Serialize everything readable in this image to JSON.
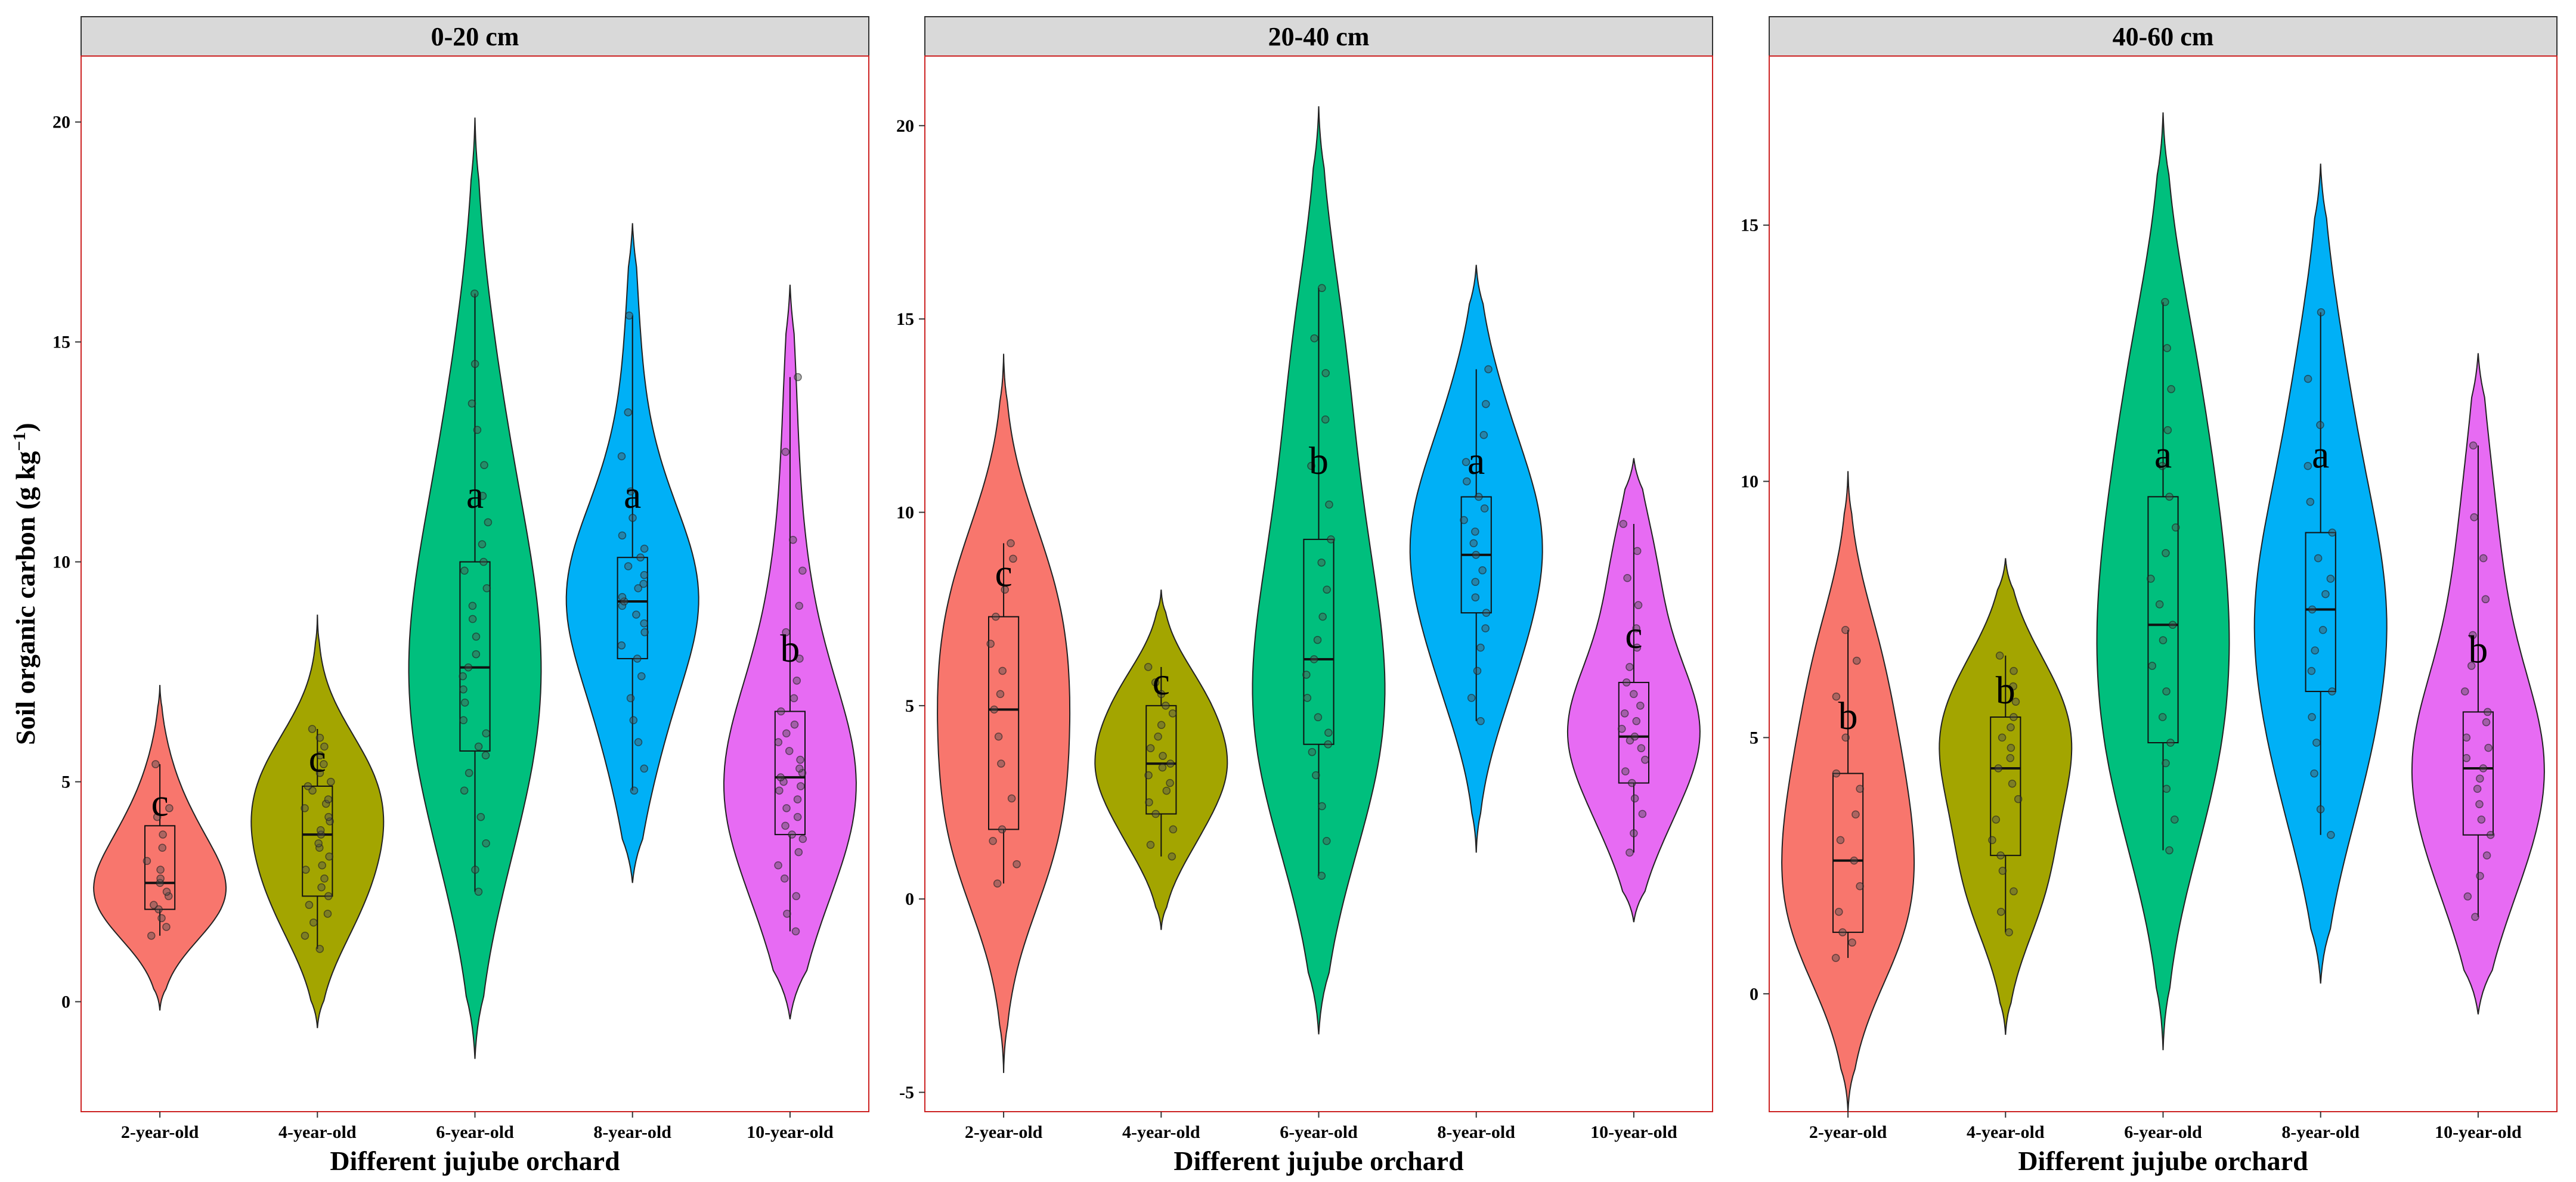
{
  "chart_data": [
    {
      "type": "violin",
      "panel_title": "0-20 cm",
      "ylabel": "Soil organic carbon (g kg-1)",
      "xlabel": "Different jujube orchard",
      "ylim": [
        -2.5,
        21.5
      ],
      "yticks": [
        0,
        5,
        10,
        15,
        20
      ],
      "grid": false,
      "legend": "none",
      "groups": [
        {
          "name": "2-year-old",
          "color": "#F8766D",
          "letter": "c",
          "label_y": 4.5,
          "min": 1.5,
          "q1": 2.1,
          "median": 2.7,
          "q3": 4.0,
          "max": 5.4,
          "violin_min": -0.2,
          "violin_max": 7.2,
          "points": [
            1.5,
            1.7,
            1.9,
            2.1,
            2.2,
            2.4,
            2.5,
            2.7,
            2.8,
            3.0,
            3.2,
            3.5,
            3.8,
            4.2,
            4.4,
            5.4
          ]
        },
        {
          "name": "4-year-old",
          "color": "#A3A500",
          "letter": "c",
          "label_y": 5.5,
          "min": 1.2,
          "q1": 2.4,
          "median": 3.8,
          "q3": 4.9,
          "max": 6.2,
          "violin_min": -0.6,
          "violin_max": 8.8,
          "points": [
            1.2,
            1.5,
            1.8,
            2.0,
            2.2,
            2.4,
            2.6,
            2.8,
            3.0,
            3.1,
            3.3,
            3.5,
            3.6,
            3.8,
            3.9,
            4.1,
            4.2,
            4.4,
            4.5,
            4.6,
            4.8,
            4.9,
            5.0,
            5.2,
            5.4,
            5.6,
            5.8,
            6.0,
            6.2
          ]
        },
        {
          "name": "6-year-old",
          "color": "#00BF7D",
          "letter": "a",
          "label_y": 11.5,
          "min": 2.5,
          "q1": 5.7,
          "median": 7.6,
          "q3": 10.0,
          "max": 16.1,
          "violin_min": -1.3,
          "violin_max": 20.1,
          "points": [
            2.5,
            3.0,
            3.6,
            4.2,
            4.8,
            5.2,
            5.6,
            5.8,
            6.1,
            6.4,
            6.8,
            7.1,
            7.4,
            7.6,
            7.9,
            8.3,
            8.7,
            9.0,
            9.4,
            9.8,
            10.0,
            10.4,
            10.9,
            11.5,
            12.2,
            13.0,
            13.6,
            14.5,
            16.1
          ]
        },
        {
          "name": "8-year-old",
          "color": "#00B0F6",
          "letter": "a",
          "label_y": 11.5,
          "min": 4.8,
          "q1": 7.8,
          "median": 9.1,
          "q3": 10.1,
          "max": 15.6,
          "violin_min": 2.7,
          "violin_max": 17.7,
          "points": [
            4.8,
            5.3,
            5.9,
            6.4,
            6.9,
            7.4,
            7.8,
            8.1,
            8.4,
            8.6,
            8.8,
            9.0,
            9.1,
            9.2,
            9.4,
            9.5,
            9.7,
            9.9,
            10.1,
            10.3,
            10.6,
            11.0,
            11.6,
            12.4,
            13.4,
            15.6
          ]
        },
        {
          "name": "10-year-old",
          "color": "#E76BF3",
          "letter": "b",
          "label_y": 8.0,
          "min": 1.6,
          "q1": 3.8,
          "median": 5.1,
          "q3": 6.6,
          "max": 14.2,
          "violin_min": -0.4,
          "violin_max": 16.3,
          "points": [
            1.6,
            2.0,
            2.4,
            2.8,
            3.1,
            3.4,
            3.7,
            3.8,
            4.0,
            4.2,
            4.4,
            4.6,
            4.8,
            4.9,
            5.0,
            5.1,
            5.2,
            5.3,
            5.5,
            5.7,
            5.9,
            6.1,
            6.3,
            6.6,
            6.9,
            7.3,
            7.8,
            8.4,
            9.0,
            9.8,
            10.5,
            12.5,
            14.2
          ]
        }
      ]
    },
    {
      "type": "violin",
      "panel_title": "20-40 cm",
      "xlabel": "Different jujube orchard",
      "ylim": [
        -5.5,
        21.8
      ],
      "yticks": [
        -5,
        0,
        5,
        10,
        15,
        20
      ],
      "grid": false,
      "legend": "none",
      "groups": [
        {
          "name": "2-year-old",
          "color": "#F8766D",
          "letter": "c",
          "label_y": 8.4,
          "min": 0.4,
          "q1": 1.8,
          "median": 4.9,
          "q3": 7.3,
          "max": 9.2,
          "violin_min": -4.5,
          "violin_max": 14.1,
          "points": [
            0.4,
            0.9,
            1.5,
            1.8,
            2.6,
            3.5,
            4.2,
            4.9,
            5.3,
            5.9,
            6.6,
            7.3,
            8.0,
            8.8,
            9.2
          ]
        },
        {
          "name": "4-year-old",
          "color": "#A3A500",
          "letter": "c",
          "label_y": 5.6,
          "min": 1.1,
          "q1": 2.2,
          "median": 3.5,
          "q3": 5.0,
          "max": 6.0,
          "violin_min": -0.8,
          "violin_max": 8.0,
          "points": [
            1.1,
            1.4,
            1.8,
            2.2,
            2.5,
            2.8,
            3.0,
            3.2,
            3.4,
            3.5,
            3.7,
            3.9,
            4.2,
            4.5,
            4.8,
            5.0,
            5.3,
            5.6,
            6.0
          ]
        },
        {
          "name": "6-year-old",
          "color": "#00BF7D",
          "letter": "b",
          "label_y": 11.3,
          "min": 0.6,
          "q1": 4.0,
          "median": 6.2,
          "q3": 9.3,
          "max": 15.8,
          "violin_min": -3.5,
          "violin_max": 20.5,
          "points": [
            0.6,
            1.5,
            2.4,
            3.2,
            3.8,
            4.0,
            4.3,
            4.7,
            5.2,
            5.8,
            6.2,
            6.7,
            7.3,
            8.0,
            8.7,
            9.3,
            10.2,
            11.2,
            12.4,
            13.6,
            14.5,
            15.8
          ]
        },
        {
          "name": "8-year-old",
          "color": "#00B0F6",
          "letter": "a",
          "label_y": 11.3,
          "min": 4.6,
          "q1": 7.4,
          "median": 8.9,
          "q3": 10.4,
          "max": 13.7,
          "violin_min": 1.2,
          "violin_max": 16.4,
          "points": [
            4.6,
            5.2,
            5.9,
            6.5,
            7.0,
            7.4,
            7.8,
            8.2,
            8.5,
            8.9,
            9.2,
            9.5,
            9.8,
            10.1,
            10.4,
            10.8,
            11.3,
            12.0,
            12.8,
            13.7
          ]
        },
        {
          "name": "10-year-old",
          "color": "#E76BF3",
          "letter": "c",
          "label_y": 6.8,
          "min": 1.2,
          "q1": 3.0,
          "median": 4.2,
          "q3": 5.6,
          "max": 9.7,
          "violin_min": -0.6,
          "violin_max": 11.4,
          "points": [
            1.2,
            1.7,
            2.2,
            2.6,
            3.0,
            3.3,
            3.6,
            3.9,
            4.1,
            4.2,
            4.4,
            4.6,
            4.8,
            5.0,
            5.3,
            5.6,
            6.0,
            6.5,
            7.0,
            7.6,
            8.3,
            9.0,
            9.7
          ]
        }
      ]
    },
    {
      "type": "violin",
      "panel_title": "40-60 cm",
      "xlabel": "Different jujube orchard",
      "ylim": [
        -2.3,
        18.3
      ],
      "yticks": [
        0,
        5,
        10,
        15
      ],
      "grid": false,
      "legend": "none",
      "groups": [
        {
          "name": "2-year-old",
          "color": "#F8766D",
          "letter": "b",
          "label_y": 5.4,
          "min": 0.7,
          "q1": 1.2,
          "median": 2.6,
          "q3": 4.3,
          "max": 7.1,
          "violin_min": -2.3,
          "violin_max": 10.2,
          "points": [
            0.7,
            1.0,
            1.2,
            1.6,
            2.1,
            2.6,
            3.0,
            3.5,
            4.0,
            4.3,
            5.0,
            5.8,
            6.5,
            7.1
          ]
        },
        {
          "name": "4-year-old",
          "color": "#A3A500",
          "letter": "b",
          "label_y": 5.9,
          "min": 1.2,
          "q1": 2.7,
          "median": 4.4,
          "q3": 5.4,
          "max": 6.6,
          "violin_min": -0.8,
          "violin_max": 8.5,
          "points": [
            1.2,
            1.6,
            2.0,
            2.4,
            2.7,
            3.0,
            3.4,
            3.8,
            4.1,
            4.4,
            4.6,
            4.8,
            5.0,
            5.2,
            5.4,
            5.7,
            6.0,
            6.3,
            6.6
          ]
        },
        {
          "name": "6-year-old",
          "color": "#00BF7D",
          "letter": "a",
          "label_y": 10.5,
          "min": 2.8,
          "q1": 4.9,
          "median": 7.2,
          "q3": 9.7,
          "max": 13.5,
          "violin_min": -1.1,
          "violin_max": 17.2,
          "points": [
            2.8,
            3.4,
            4.0,
            4.5,
            4.9,
            5.4,
            5.9,
            6.4,
            6.9,
            7.2,
            7.6,
            8.1,
            8.6,
            9.1,
            9.7,
            10.3,
            11.0,
            11.8,
            12.6,
            13.5
          ]
        },
        {
          "name": "8-year-old",
          "color": "#00B0F6",
          "letter": "a",
          "label_y": 10.5,
          "min": 3.1,
          "q1": 5.9,
          "median": 7.5,
          "q3": 9.0,
          "max": 13.3,
          "violin_min": 0.2,
          "violin_max": 16.2,
          "points": [
            3.1,
            3.6,
            4.3,
            4.9,
            5.4,
            5.9,
            6.3,
            6.7,
            7.1,
            7.5,
            7.8,
            8.1,
            8.5,
            9.0,
            9.6,
            10.3,
            11.1,
            12.0,
            13.3
          ]
        },
        {
          "name": "10-year-old",
          "color": "#E76BF3",
          "letter": "b",
          "label_y": 6.7,
          "min": 1.5,
          "q1": 3.1,
          "median": 4.4,
          "q3": 5.5,
          "max": 10.7,
          "violin_min": -0.4,
          "violin_max": 12.5,
          "points": [
            1.5,
            1.9,
            2.3,
            2.7,
            3.1,
            3.4,
            3.7,
            4.0,
            4.2,
            4.4,
            4.6,
            4.8,
            5.0,
            5.3,
            5.5,
            5.9,
            6.4,
            7.0,
            7.7,
            8.5,
            9.3,
            10.7
          ]
        }
      ]
    }
  ]
}
